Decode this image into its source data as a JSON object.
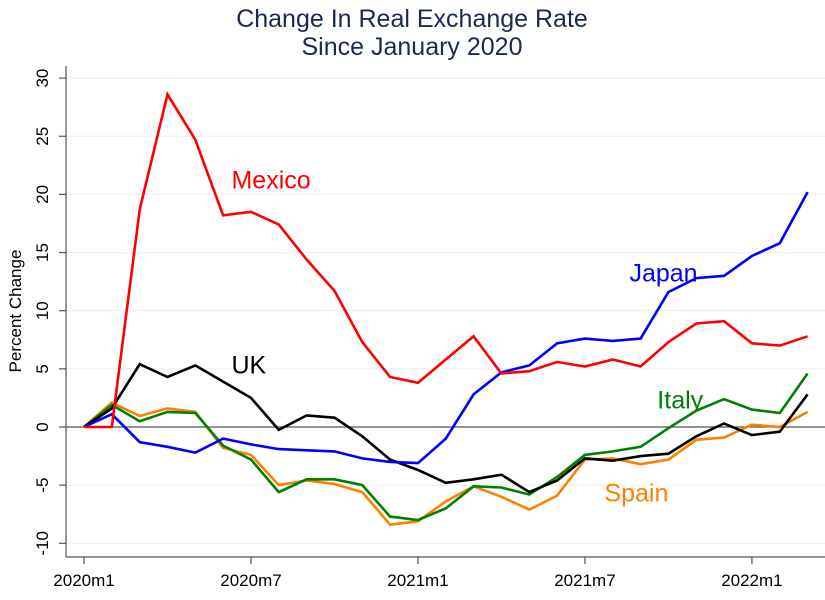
{
  "chart_data": {
    "type": "line",
    "title": [
      "Change In Real Exchange Rate",
      "Since January 2020"
    ],
    "xlabel": "",
    "ylabel": "Percent Change",
    "ylim": [
      -11,
      31
    ],
    "yticks": [
      30,
      25,
      20,
      15,
      10,
      5,
      0,
      -5,
      -10
    ],
    "x": [
      "2020m1",
      "2020m2",
      "2020m3",
      "2020m4",
      "2020m5",
      "2020m6",
      "2020m7",
      "2020m8",
      "2020m9",
      "2020m10",
      "2020m11",
      "2020m12",
      "2021m1",
      "2021m2",
      "2021m3",
      "2021m4",
      "2021m5",
      "2021m6",
      "2021m7",
      "2021m8",
      "2021m9",
      "2021m10",
      "2021m11",
      "2021m12",
      "2022m1",
      "2022m2",
      "2022m3"
    ],
    "xticks": [
      "2020m1",
      "2020m7",
      "2021m1",
      "2021m7",
      "2022m1"
    ],
    "grid": true,
    "legend": "inline labels",
    "series": [
      {
        "name": "Mexico",
        "color": "#ff0000",
        "values": [
          0,
          0,
          18.7,
          28.6,
          24.7,
          18.2,
          18.5,
          17.4,
          14.4,
          11.7,
          7.3,
          4.3,
          3.8,
          5.8,
          7.8,
          4.6,
          4.8,
          5.6,
          5.2,
          5.8,
          5.2,
          7.3,
          8.9,
          9.1,
          7.2,
          7.0,
          7.8
        ]
      },
      {
        "name": "Japan",
        "color": "#0000ff",
        "values": [
          0,
          1.1,
          -1.3,
          -1.7,
          -2.2,
          -1.0,
          -1.5,
          -1.9,
          -2.0,
          -2.1,
          -2.7,
          -3.0,
          -3.1,
          -1.0,
          2.8,
          4.7,
          5.3,
          7.2,
          7.6,
          7.4,
          7.6,
          11.6,
          12.8,
          13.0,
          14.7,
          15.8,
          20.2
        ]
      },
      {
        "name": "UK",
        "color": "#000000",
        "values": [
          0,
          1.6,
          5.4,
          4.3,
          5.3,
          3.9,
          2.5,
          -0.25,
          1.0,
          0.8,
          -0.8,
          -2.8,
          -3.7,
          -4.8,
          -4.5,
          -4.1,
          -5.6,
          -4.6,
          -2.7,
          -2.9,
          -2.5,
          -2.3,
          -0.8,
          0.3,
          -0.7,
          -0.4,
          2.8
        ]
      },
      {
        "name": "Italy",
        "color": "#008000",
        "values": [
          0,
          1.9,
          0.5,
          1.3,
          1.2,
          -1.6,
          -2.8,
          -5.6,
          -4.5,
          -4.5,
          -5.0,
          -7.7,
          -8.0,
          -7.0,
          -5.1,
          -5.2,
          -5.8,
          -4.3,
          -2.4,
          -2.1,
          -1.7,
          -0.1,
          1.4,
          2.4,
          1.5,
          1.2,
          4.6
        ]
      },
      {
        "name": "Spain",
        "color": "#ff8000",
        "values": [
          0,
          2.1,
          0.95,
          1.6,
          1.3,
          -1.8,
          -2.4,
          -5.0,
          -4.6,
          -4.9,
          -5.6,
          -8.4,
          -8.1,
          -6.4,
          -5.1,
          -6.0,
          -7.1,
          -5.9,
          -2.8,
          -2.7,
          -3.2,
          -2.8,
          -1.1,
          -0.9,
          0.2,
          0.0,
          1.3
        ]
      }
    ],
    "annotations": [
      {
        "text": "Mexico",
        "series": "Mexico",
        "x": "2020m6.3",
        "y": 20.5
      },
      {
        "text": "UK",
        "series": "UK",
        "x": "2020m6.3",
        "y": 4.6
      },
      {
        "text": "Japan",
        "series": "Japan",
        "x": "2021m8.6",
        "y": 12.5
      },
      {
        "text": "Italy",
        "series": "Italy",
        "x": "2021m9.6",
        "y": 1.6
      },
      {
        "text": "Spain",
        "series": "Spain",
        "x": "2021m7.7",
        "y": -6.4
      }
    ]
  }
}
